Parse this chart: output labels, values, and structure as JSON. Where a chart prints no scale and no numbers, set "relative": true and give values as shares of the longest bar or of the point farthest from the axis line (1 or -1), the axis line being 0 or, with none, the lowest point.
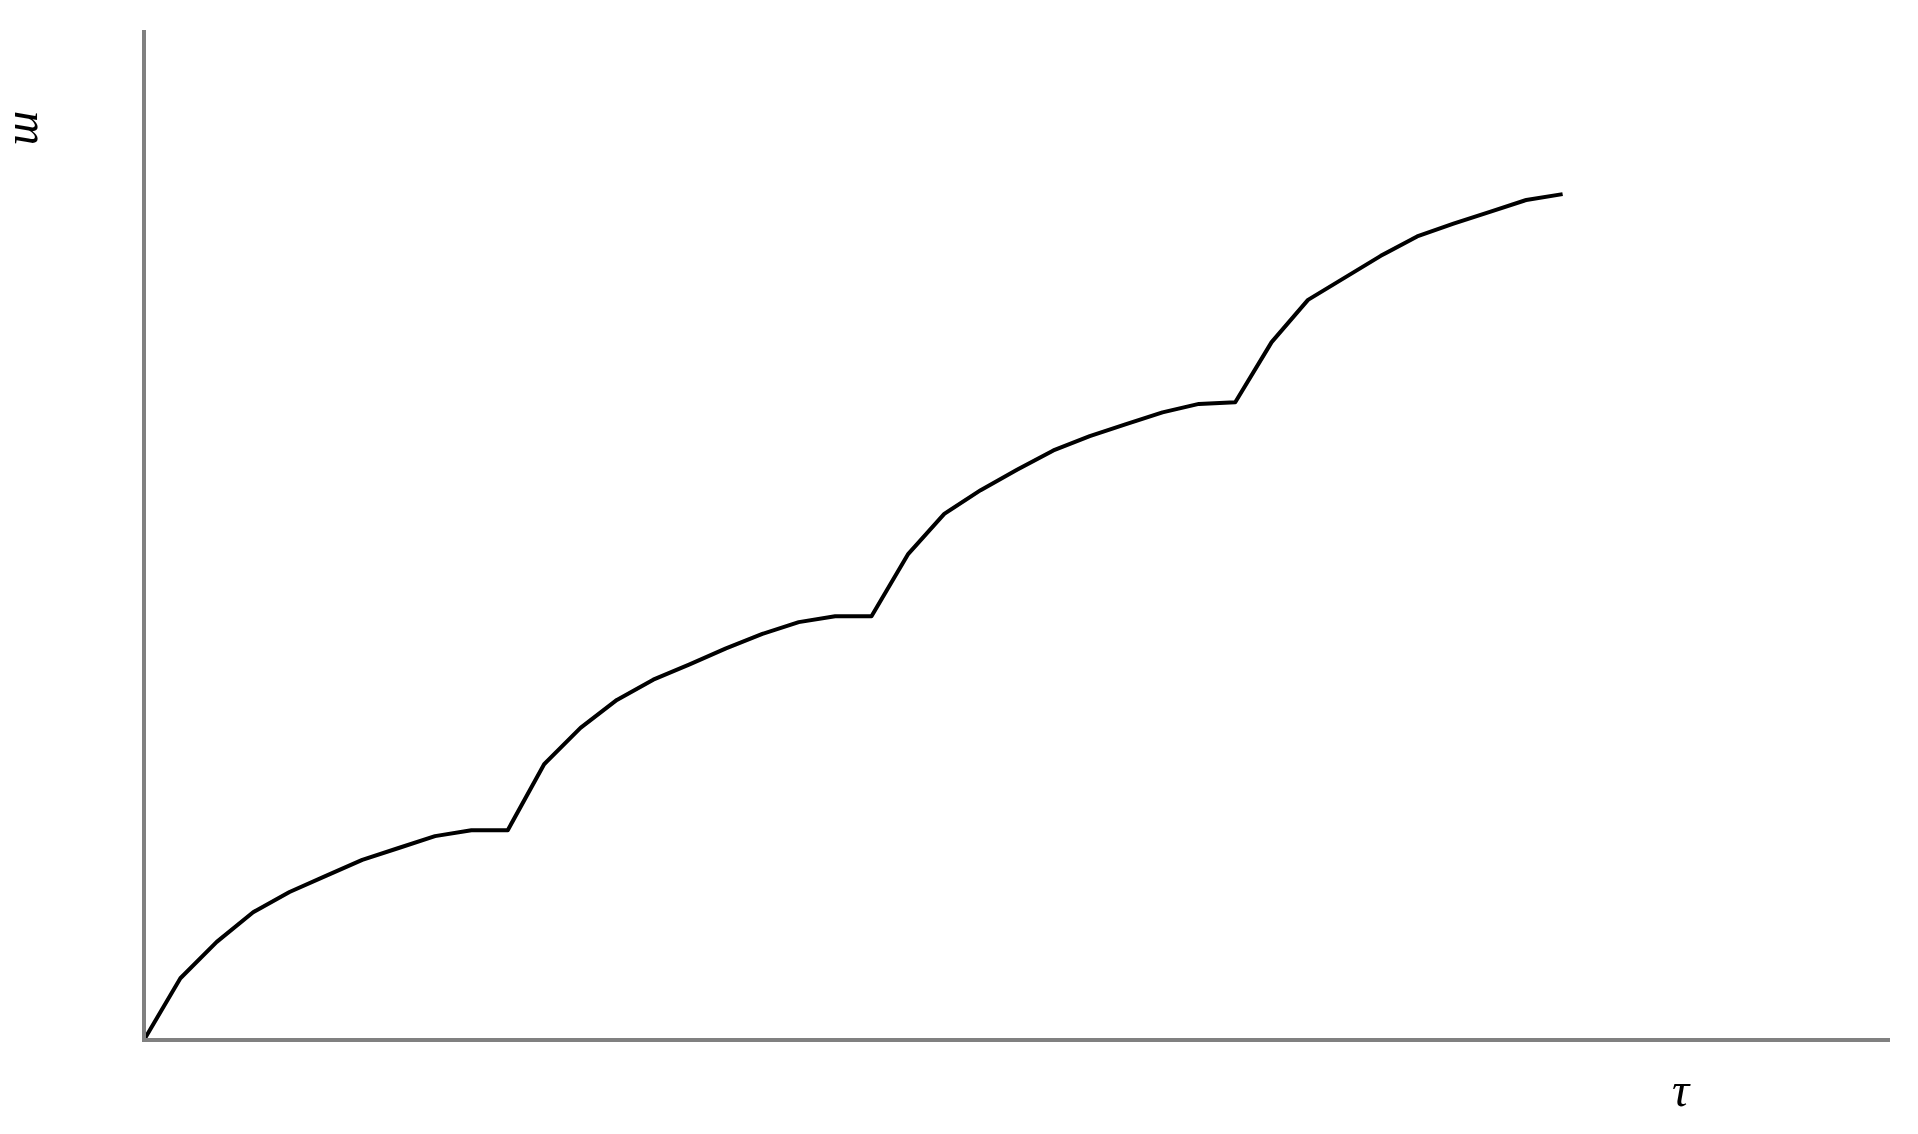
{
  "chart_data": {
    "type": "line",
    "relative": true,
    "xlabel": "τ",
    "ylabel": "m",
    "legend": false,
    "marker": "none",
    "line_style": "solid",
    "tick_labels": false,
    "categories": [
      null,
      null,
      null,
      null,
      null,
      null,
      null,
      null,
      null,
      null,
      null,
      null,
      null,
      null,
      null,
      null,
      null,
      null,
      null,
      null,
      null,
      null,
      null,
      null,
      null,
      null,
      null,
      null,
      null,
      null,
      null,
      null,
      null,
      null,
      null,
      null,
      null,
      null,
      null,
      null,
      null,
      null,
      null,
      null,
      null,
      null,
      null,
      null,
      null
    ],
    "series": [
      {
        "color": "#000000",
        "values": [
          0,
          0.073,
          0.116,
          0.151,
          0.175,
          0.194,
          0.213,
          0.227,
          0.241,
          0.248,
          0.248,
          0.326,
          0.369,
          0.402,
          0.426,
          0.444,
          0.463,
          0.48,
          0.494,
          0.501,
          0.501,
          0.574,
          0.622,
          0.65,
          0.674,
          0.697,
          0.714,
          0.728,
          0.742,
          0.752,
          0.754,
          0.825,
          0.875,
          0.901,
          0.927,
          0.95,
          0.965,
          0.979,
          0.993,
          1,
          null,
          null,
          null,
          null,
          null,
          null,
          null,
          null,
          null
        ]
      }
    ]
  }
}
